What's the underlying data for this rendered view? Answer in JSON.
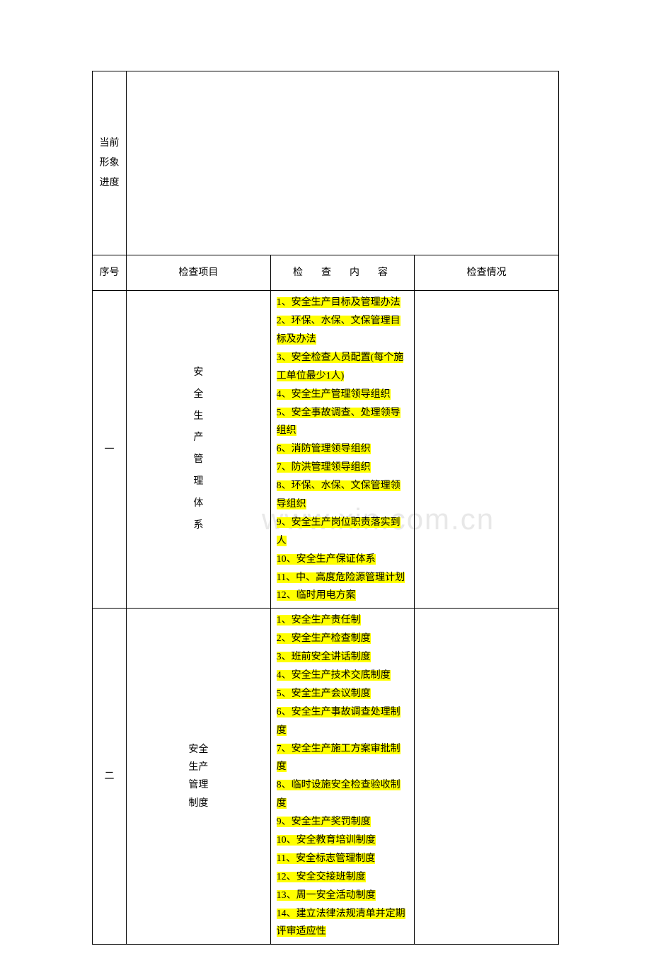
{
  "watermark": "www.xin.com.cn",
  "progress_label": "当前形象进度",
  "header": {
    "seq": "序号",
    "item": "检查项目",
    "content": "检　查　内　容",
    "status": "检查情况"
  },
  "rows": [
    {
      "seq": "一",
      "item": "安全生产管理体系",
      "content_lines": [
        {
          "text": "1、安全生产目标及管理办法",
          "hl": true
        },
        {
          "text": "2、环保、水保、文保管理目标及办法",
          "hl": true
        },
        {
          "text": "3、安全检查人员配置(每个施工单位最少1人)",
          "hl": true
        },
        {
          "text": "4、安全生产管理领导组织",
          "hl": true
        },
        {
          "text": "5、安全事故调查、处理领导组织",
          "hl": true
        },
        {
          "text": "6、消防管理领导组织",
          "hl": true
        },
        {
          "text": "7、防洪管理领导组织",
          "hl": true
        },
        {
          "text": "8、环保、水保、文保管理领导组织",
          "hl": true
        },
        {
          "text": "9、安全生产岗位职责落实到人",
          "hl": true
        },
        {
          "text": "10、安全生产保证体系",
          "hl": true
        },
        {
          "text": "11、中、高度危险源管理计划",
          "hl": true
        },
        {
          "text": "12、临时用电方案",
          "hl": true
        }
      ]
    },
    {
      "seq": "二",
      "item": "安全生产管理制度",
      "content_lines": [
        {
          "text": "1、安全生产责任制",
          "hl": true
        },
        {
          "text": "2、安全生产检查制度",
          "hl": true
        },
        {
          "text": "3、班前安全讲话制度",
          "hl": true
        },
        {
          "text": "4、安全生产技术交底制度",
          "hl": true
        },
        {
          "text": "5、安全生产会议制度",
          "hl": true
        },
        {
          "text": "6、安全生产事故调查处理制度",
          "hl": true
        },
        {
          "text": "7、安全生产施工方案审批制度",
          "hl": true
        },
        {
          "text": "8、临时设施安全检查验收制度",
          "hl": true
        },
        {
          "text": "9、安全生产奖罚制度",
          "hl": true
        },
        {
          "text": "10、安全教育培训制度",
          "hl": true
        },
        {
          "text": "11、安全标志管理制度",
          "hl": true
        },
        {
          "text": "12、安全交接班制度",
          "hl": true
        },
        {
          "text": "13、周一安全活动制度",
          "hl": true
        },
        {
          "text": "14、建立法律法规清单并定期评审适应性",
          "hl": true
        }
      ]
    }
  ],
  "colors": {
    "highlight": "#ffff00",
    "text": "#000000",
    "border": "#000000",
    "background": "#ffffff",
    "watermark": "#e8e8e8"
  }
}
